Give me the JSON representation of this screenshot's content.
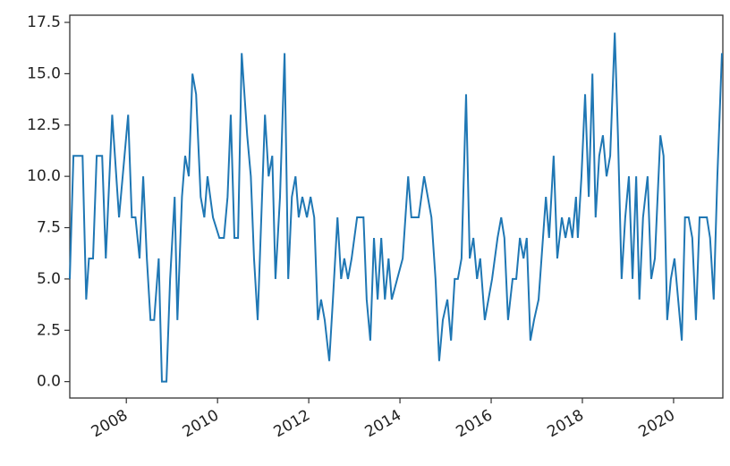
{
  "chart_data": {
    "type": "line",
    "x": [
      2006.76,
      2006.84,
      2007.04,
      2007.12,
      2007.18,
      2007.27,
      2007.35,
      2007.47,
      2007.55,
      2007.69,
      2007.84,
      2008.04,
      2008.12,
      2008.2,
      2008.29,
      2008.37,
      2008.45,
      2008.53,
      2008.61,
      2008.71,
      2008.78,
      2008.88,
      2008.96,
      2009.06,
      2009.12,
      2009.22,
      2009.29,
      2009.37,
      2009.45,
      2009.53,
      2009.63,
      2009.71,
      2009.78,
      2009.9,
      2010.04,
      2010.14,
      2010.22,
      2010.29,
      2010.37,
      2010.45,
      2010.53,
      2010.65,
      2010.73,
      2010.8,
      2010.88,
      2011.04,
      2011.12,
      2011.2,
      2011.27,
      2011.37,
      2011.47,
      2011.55,
      2011.63,
      2011.71,
      2011.78,
      2011.86,
      2011.96,
      2012.04,
      2012.12,
      2012.2,
      2012.27,
      2012.35,
      2012.45,
      2012.53,
      2012.63,
      2012.71,
      2012.78,
      2012.86,
      2012.94,
      2013.06,
      2013.2,
      2013.27,
      2013.35,
      2013.43,
      2013.51,
      2013.59,
      2013.67,
      2013.75,
      2013.82,
      2013.94,
      2014.06,
      2014.18,
      2014.25,
      2014.41,
      2014.53,
      2014.69,
      2014.78,
      2014.86,
      2014.94,
      2015.04,
      2015.12,
      2015.2,
      2015.27,
      2015.35,
      2015.45,
      2015.53,
      2015.61,
      2015.69,
      2015.76,
      2015.86,
      2016.02,
      2016.14,
      2016.22,
      2016.29,
      2016.37,
      2016.47,
      2016.55,
      2016.63,
      2016.71,
      2016.78,
      2016.86,
      2016.94,
      2017.04,
      2017.2,
      2017.27,
      2017.37,
      2017.45,
      2017.55,
      2017.63,
      2017.71,
      2017.78,
      2017.86,
      2017.9,
      2017.98,
      2018.06,
      2018.14,
      2018.22,
      2018.29,
      2018.37,
      2018.45,
      2018.53,
      2018.61,
      2018.71,
      2018.78,
      2018.86,
      2018.94,
      2019.02,
      2019.1,
      2019.18,
      2019.25,
      2019.33,
      2019.43,
      2019.51,
      2019.59,
      2019.71,
      2019.78,
      2019.86,
      2019.94,
      2020.02,
      2020.1,
      2020.18,
      2020.25,
      2020.33,
      2020.41,
      2020.49,
      2020.57,
      2020.65,
      2020.73,
      2020.8,
      2020.88,
      2020.96,
      2021.06
    ],
    "series": [
      {
        "color": "#1f77b4",
        "values": [
          5,
          11,
          11,
          4,
          6,
          6,
          11,
          11,
          6,
          13,
          8,
          13,
          8,
          8,
          6,
          10,
          6,
          3,
          3,
          6,
          0,
          0,
          5,
          9,
          3,
          9,
          11,
          10,
          15,
          14,
          9,
          8,
          10,
          8,
          7,
          7,
          9,
          13,
          7,
          7,
          16,
          12,
          10,
          6,
          3,
          13,
          10,
          11,
          5,
          9,
          16,
          5,
          9,
          10,
          8,
          9,
          8,
          9,
          8,
          3,
          4,
          3,
          1,
          4,
          8,
          5,
          6,
          5,
          6,
          8,
          8,
          4,
          2,
          7,
          4,
          7,
          4,
          6,
          4,
          5,
          6,
          10,
          8,
          8,
          10,
          8,
          5,
          1,
          3,
          4,
          2,
          5,
          5,
          6,
          14,
          6,
          7,
          5,
          6,
          3,
          5,
          7,
          8,
          7,
          3,
          5,
          5,
          7,
          6,
          7,
          2,
          3,
          4,
          9,
          7,
          11,
          6,
          8,
          7,
          8,
          7,
          9,
          7,
          10,
          14,
          9,
          15,
          8,
          11,
          12,
          10,
          11,
          17,
          12,
          5,
          8,
          10,
          5,
          10,
          4,
          8,
          10,
          5,
          6,
          12,
          11,
          3,
          5,
          6,
          4,
          2,
          8,
          8,
          7,
          3,
          8,
          8,
          8,
          7,
          4,
          10,
          16
        ]
      }
    ],
    "xlim": [
      2006.76,
      2021.08
    ],
    "xticks": [
      2008,
      2010,
      2012,
      2014,
      2016,
      2018,
      2020
    ],
    "ylim": [
      -0.8,
      17.85
    ],
    "yticks": [
      {
        "value": 0,
        "label": "0.0"
      },
      2.5,
      {
        "value": 5,
        "label": "5.0"
      },
      7.5,
      {
        "value": 10,
        "label": "10.0"
      },
      12.5,
      {
        "value": 15,
        "label": "15.0"
      },
      17.5
    ]
  }
}
